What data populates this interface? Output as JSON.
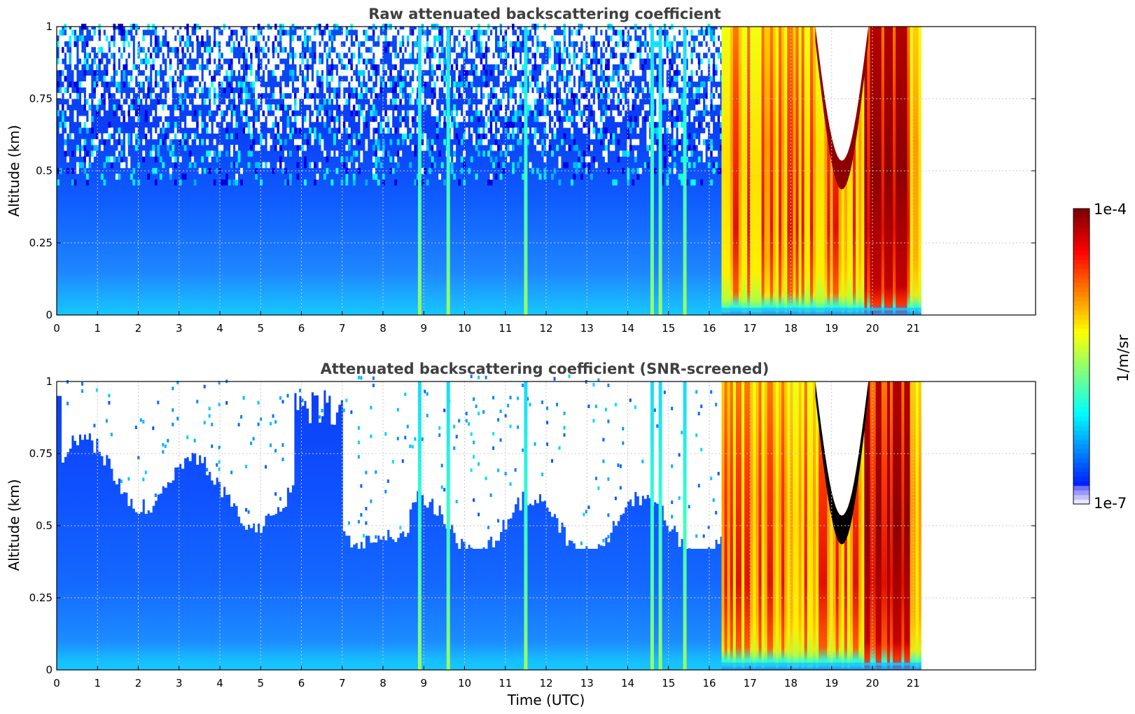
{
  "chart_data": [
    {
      "type": "heatmap",
      "title": "Raw attenuated backscattering coefficient",
      "xlabel": "",
      "ylabel": "Altitude (km)",
      "xlim": [
        0,
        24
      ],
      "ylim": [
        0,
        1
      ],
      "xticks": [
        "0",
        "1",
        "2",
        "3",
        "4",
        "5",
        "6",
        "7",
        "8",
        "9",
        "10",
        "11",
        "12",
        "13",
        "14",
        "15",
        "16",
        "17",
        "18",
        "19",
        "20",
        "21"
      ],
      "yticks": [
        "0",
        "0.25",
        "0.5",
        "0.75",
        "1"
      ],
      "grid": true,
      "data_extent_hours": [
        0,
        21.2
      ],
      "vertical_streaks_hours": [
        8.9,
        9.6,
        11.5,
        14.6,
        14.8,
        15.4
      ],
      "cloud_period_hours": [
        16.3,
        21.2
      ],
      "high_cloud_hours": [
        18.6,
        19.9
      ],
      "snr_screened": false
    },
    {
      "type": "heatmap",
      "title": "Attenuated backscattering coefficient (SNR-screened)",
      "xlabel": "Time (UTC)",
      "ylabel": "Altitude (km)",
      "xlim": [
        0,
        24
      ],
      "ylim": [
        0,
        1
      ],
      "xticks": [
        "0",
        "1",
        "2",
        "3",
        "4",
        "5",
        "6",
        "7",
        "8",
        "9",
        "10",
        "11",
        "12",
        "13",
        "14",
        "15",
        "16",
        "17",
        "18",
        "19",
        "20",
        "21"
      ],
      "yticks": [
        "0",
        "0.25",
        "0.5",
        "0.75",
        "1"
      ],
      "grid": true,
      "data_extent_hours": [
        0,
        21.2
      ],
      "vertical_streaks_hours": [
        8.9,
        9.6,
        11.5,
        14.6,
        14.8,
        15.4
      ],
      "cloud_period_hours": [
        16.3,
        21.2
      ],
      "high_cloud_hours": [
        18.6,
        19.9
      ],
      "snr_screened": true
    }
  ],
  "colorbar": {
    "max_label": "1e-4",
    "min_label": "1e-7",
    "unit": "1/m/sr",
    "colormap": "jet"
  }
}
